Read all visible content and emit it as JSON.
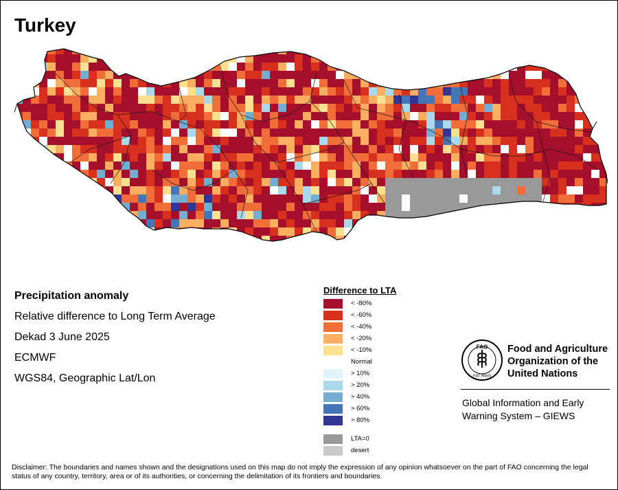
{
  "map": {
    "title": "Turkey",
    "info_lines": [
      "Precipitation anomaly",
      "Relative difference to Long Term Average",
      "Dekad 3 June 2025",
      "ECMWF",
      "WGS84, Geographic Lat/Lon"
    ]
  },
  "legend": {
    "title": "Difference to LTA",
    "items": [
      {
        "label": "< -80%",
        "color": "#a50f2c"
      },
      {
        "label": "< -60%",
        "color": "#d7301f"
      },
      {
        "label": "< -40%",
        "color": "#f16d3a"
      },
      {
        "label": "< -20%",
        "color": "#fdae61"
      },
      {
        "label": "< -10%",
        "color": "#fee090"
      },
      {
        "label": "Normal",
        "color": "#ffffff"
      },
      {
        "label": "> 10%",
        "color": "#e0f3f8"
      },
      {
        "label": "> 20%",
        "color": "#abd9e9"
      },
      {
        "label": "> 40%",
        "color": "#74add1"
      },
      {
        "label": "> 60%",
        "color": "#4575b4"
      },
      {
        "label": "> 80%",
        "color": "#313695"
      }
    ],
    "extra": [
      {
        "label": "LTA=0",
        "color": "#999999"
      },
      {
        "label": "desert",
        "color": "#c8c8c8"
      }
    ]
  },
  "organization": {
    "name_lines": [
      "Food and Agriculture",
      "Organization of the",
      "United Nations"
    ],
    "logo_letters": "FAO",
    "logo_motto": "FIAT PANIS",
    "system_lines": [
      "Global Information and Early",
      "Warning System – GIEWS"
    ]
  },
  "disclaimer": "Disclaimer: The boundaries and names shown and the designations used on this map do not imply the expression of any opinion whatsoever on the part of FAO concerning the legal status of any country, territory, area or of its authorities, or concerning the delimitation of its frontiers and boundaries."
}
